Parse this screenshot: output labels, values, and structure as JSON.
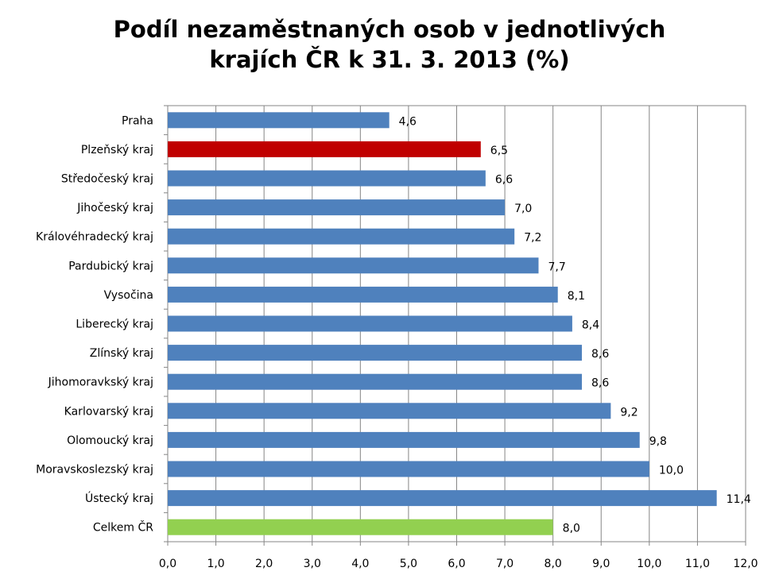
{
  "chart_data": {
    "type": "bar",
    "orientation": "horizontal",
    "title_lines": [
      "Podíl nezaměstnaných osob v jednotlivých",
      "krajích ČR k 31. 3. 2013 (%)"
    ],
    "categories": [
      "Praha",
      "Plzeňský kraj",
      "Středočeský kraj",
      "Jihočeský kraj",
      "Královéhradecký kraj",
      "Pardubický kraj",
      "Vysočina",
      "Liberecký kraj",
      "Zlínský kraj",
      "Jihomoravkský kraj",
      "Karlovarský kraj",
      "Olomoucký kraj",
      "Moravskoslezský kraj",
      "Ústecký kraj",
      "Celkem ČR"
    ],
    "values": [
      4.6,
      6.5,
      6.6,
      7.0,
      7.2,
      7.7,
      8.1,
      8.4,
      8.6,
      8.6,
      9.2,
      9.8,
      10.0,
      11.4,
      8.0
    ],
    "value_labels": [
      "4,6",
      "6,5",
      "6,6",
      "7,0",
      "7,2",
      "7,7",
      "8,1",
      "8,4",
      "8,6",
      "8,6",
      "9,2",
      "9,8",
      "10,0",
      "11,4",
      "8,0"
    ],
    "bar_colors": [
      "#4F81BD",
      "#C00000",
      "#4F81BD",
      "#4F81BD",
      "#4F81BD",
      "#4F81BD",
      "#4F81BD",
      "#4F81BD",
      "#4F81BD",
      "#4F81BD",
      "#4F81BD",
      "#4F81BD",
      "#4F81BD",
      "#4F81BD",
      "#92D050"
    ],
    "xlim": [
      0,
      12
    ],
    "xticks": [
      "0,0",
      "1,0",
      "2,0",
      "3,0",
      "4,0",
      "5,0",
      "6,0",
      "7,0",
      "8,0",
      "9,0",
      "10,0",
      "11,0",
      "12,0"
    ],
    "grid": "vertical",
    "legend": "none"
  }
}
